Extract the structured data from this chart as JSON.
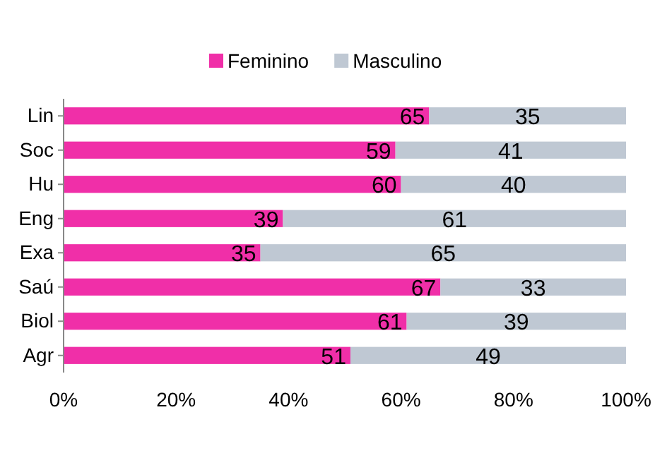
{
  "chart_data": {
    "type": "bar",
    "orientation": "horizontal",
    "stacked": true,
    "categories": [
      "Lin",
      "Soc",
      "Hu",
      "Eng",
      "Exa",
      "Saú",
      "Biol",
      "Agr"
    ],
    "series": [
      {
        "name": "Feminino",
        "color": "#f02fa8",
        "values": [
          65,
          59,
          60,
          39,
          35,
          67,
          61,
          51
        ]
      },
      {
        "name": "Masculino",
        "color": "#bfc8d3",
        "values": [
          35,
          41,
          40,
          61,
          65,
          33,
          39,
          49
        ]
      }
    ],
    "xlim": [
      0,
      100
    ],
    "xticks": [
      {
        "value": 0,
        "label": "0%"
      },
      {
        "value": 20,
        "label": "20%"
      },
      {
        "value": 40,
        "label": "40%"
      },
      {
        "value": 60,
        "label": "60%"
      },
      {
        "value": 80,
        "label": "80%"
      },
      {
        "value": 100,
        "label": "100%"
      }
    ],
    "data_labels": true,
    "legend": "top",
    "grid": false
  }
}
